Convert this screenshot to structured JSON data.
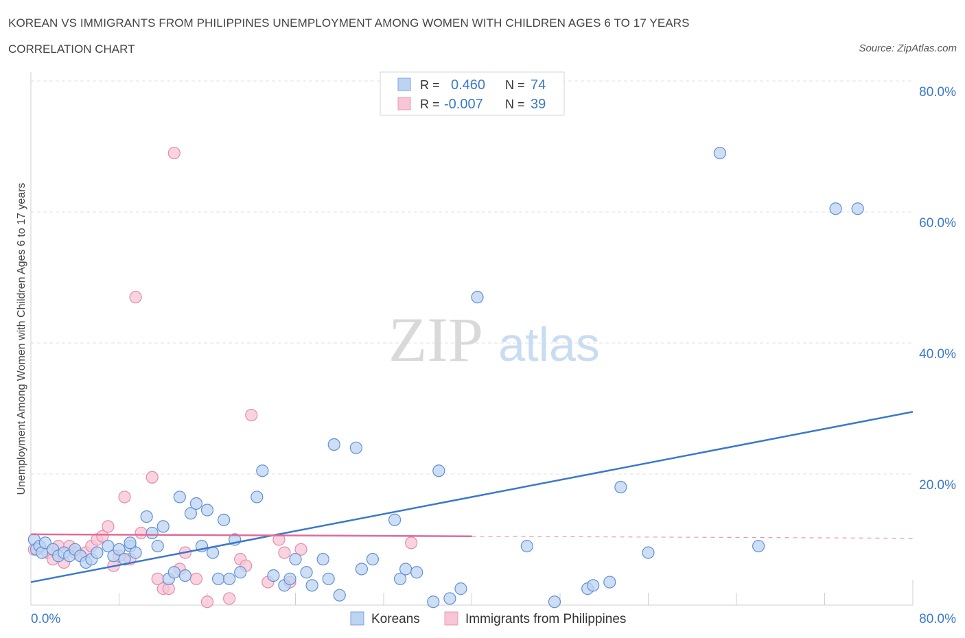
{
  "title": "KOREAN VS IMMIGRANTS FROM PHILIPPINES UNEMPLOYMENT AMONG WOMEN WITH CHILDREN AGES 6 TO 17 YEARS",
  "subtitle": "CORRELATION CHART",
  "source": "Source: ZipAtlas.com",
  "watermark": {
    "zip": "ZIP",
    "atlas": "atlas"
  },
  "colors": {
    "blue": "#3a78cc",
    "pink": "#e26a96",
    "blue_fill": "#bcd3f2",
    "pink_fill": "#f7c5d6",
    "axis_text": "#3a78cc"
  },
  "legend_top": {
    "rows": [
      {
        "r_label": "R =",
        "r_value": "0.460",
        "n_label": "N =",
        "n_value": "74"
      },
      {
        "r_label": "R =",
        "r_value": "-0.007",
        "n_label": "N =",
        "n_value": "39"
      }
    ]
  },
  "legend_bottom": {
    "items": [
      "Koreans",
      "Immigrants from Philippines"
    ]
  },
  "chart_data": {
    "type": "scatter",
    "title": "KOREAN VS IMMIGRANTS FROM PHILIPPINES UNEMPLOYMENT AMONG WOMEN WITH CHILDREN AGES 6 TO 17 YEARS",
    "subtitle": "CORRELATION CHART",
    "ylabel": "Unemployment Among Women with Children Ages 6 to 17 years",
    "xlabel": "",
    "xlim": [
      0,
      80
    ],
    "ylim": [
      0,
      80
    ],
    "x_tick_labels": {
      "min": "0.0%",
      "max": "80.0%"
    },
    "y_tick_labels": [
      "20.0%",
      "40.0%",
      "60.0%",
      "80.0%"
    ],
    "y_ticks": [
      20,
      40,
      60,
      80
    ],
    "grid": true,
    "legend_position": "top-center",
    "series": [
      {
        "name": "Koreans",
        "R": 0.46,
        "N": 74,
        "trend": {
          "x0": 0,
          "y0": 3.5,
          "x1": 80,
          "y1": 29.5,
          "dashed_from": null
        },
        "points": [
          [
            0.3,
            10.0
          ],
          [
            0.5,
            8.5
          ],
          [
            0.8,
            9.0
          ],
          [
            1.0,
            8.0
          ],
          [
            1.3,
            9.5
          ],
          [
            2.0,
            8.5
          ],
          [
            2.5,
            7.5
          ],
          [
            3.0,
            8.0
          ],
          [
            3.5,
            7.5
          ],
          [
            4.0,
            8.5
          ],
          [
            4.5,
            7.5
          ],
          [
            5.0,
            6.5
          ],
          [
            5.5,
            7.0
          ],
          [
            6.0,
            8.0
          ],
          [
            7.0,
            9.0
          ],
          [
            7.5,
            7.5
          ],
          [
            8.0,
            8.5
          ],
          [
            8.5,
            7.0
          ],
          [
            9.0,
            9.0
          ],
          [
            9.5,
            8.0
          ],
          [
            10.5,
            13.5
          ],
          [
            11.0,
            11.0
          ],
          [
            11.5,
            9.0
          ],
          [
            12.0,
            12.0
          ],
          [
            12.5,
            4.0
          ],
          [
            13.0,
            5.0
          ],
          [
            13.5,
            16.5
          ],
          [
            14.0,
            4.5
          ],
          [
            14.5,
            14.0
          ],
          [
            15.0,
            15.5
          ],
          [
            15.5,
            9.0
          ],
          [
            16.0,
            14.5
          ],
          [
            16.5,
            8.0
          ],
          [
            17.0,
            4.0
          ],
          [
            17.5,
            13.0
          ],
          [
            18.0,
            4.0
          ],
          [
            18.5,
            10.0
          ],
          [
            19.0,
            5.0
          ],
          [
            20.5,
            16.5
          ],
          [
            21.0,
            20.5
          ],
          [
            22.0,
            4.5
          ],
          [
            23.0,
            3.0
          ],
          [
            23.5,
            4.0
          ],
          [
            24.0,
            7.0
          ],
          [
            25.0,
            5.0
          ],
          [
            25.5,
            3.0
          ],
          [
            26.5,
            7.0
          ],
          [
            27.0,
            4.0
          ],
          [
            27.5,
            24.5
          ],
          [
            28.0,
            1.5
          ],
          [
            29.5,
            24.0
          ],
          [
            30.0,
            5.5
          ],
          [
            31.0,
            7.0
          ],
          [
            33.0,
            13.0
          ],
          [
            33.5,
            4.0
          ],
          [
            34.0,
            5.5
          ],
          [
            35.0,
            5.0
          ],
          [
            36.5,
            0.5
          ],
          [
            37.0,
            20.5
          ],
          [
            38.0,
            1.0
          ],
          [
            39.0,
            2.5
          ],
          [
            40.5,
            47.0
          ],
          [
            45.0,
            9.0
          ],
          [
            47.5,
            0.5
          ],
          [
            50.5,
            2.5
          ],
          [
            51.0,
            3.0
          ],
          [
            52.5,
            3.5
          ],
          [
            53.5,
            18.0
          ],
          [
            56.0,
            8.0
          ],
          [
            62.5,
            69.0
          ],
          [
            66.0,
            9.0
          ],
          [
            73.0,
            60.5
          ],
          [
            75.0,
            60.5
          ],
          [
            9.0,
            9.5
          ]
        ]
      },
      {
        "name": "Immigrants from Philippines",
        "R": -0.007,
        "N": 39,
        "trend": {
          "x0": 0,
          "y0": 10.8,
          "x1": 80,
          "y1": 10.2,
          "dashed_from": 40
        },
        "points": [
          [
            0.3,
            8.5
          ],
          [
            0.8,
            9.0
          ],
          [
            1.5,
            8.0
          ],
          [
            2.0,
            7.0
          ],
          [
            2.5,
            9.0
          ],
          [
            3.0,
            6.5
          ],
          [
            3.5,
            9.0
          ],
          [
            4.0,
            8.0
          ],
          [
            4.5,
            7.5
          ],
          [
            5.0,
            8.0
          ],
          [
            5.5,
            9.0
          ],
          [
            6.0,
            10.0
          ],
          [
            6.5,
            10.5
          ],
          [
            7.0,
            12.0
          ],
          [
            7.5,
            6.0
          ],
          [
            8.0,
            7.5
          ],
          [
            8.5,
            16.5
          ],
          [
            9.0,
            7.0
          ],
          [
            9.5,
            47.0
          ],
          [
            10.0,
            11.0
          ],
          [
            11.0,
            19.5
          ],
          [
            11.5,
            4.0
          ],
          [
            12.0,
            2.5
          ],
          [
            12.5,
            2.5
          ],
          [
            13.0,
            69.0
          ],
          [
            13.5,
            5.5
          ],
          [
            14.0,
            8.0
          ],
          [
            15.0,
            4.0
          ],
          [
            16.0,
            0.5
          ],
          [
            18.0,
            1.0
          ],
          [
            19.0,
            7.0
          ],
          [
            19.5,
            6.0
          ],
          [
            20.0,
            29.0
          ],
          [
            21.5,
            3.5
          ],
          [
            22.5,
            10.0
          ],
          [
            23.0,
            8.0
          ],
          [
            23.5,
            3.5
          ],
          [
            24.5,
            8.5
          ],
          [
            34.5,
            9.5
          ]
        ]
      }
    ]
  }
}
